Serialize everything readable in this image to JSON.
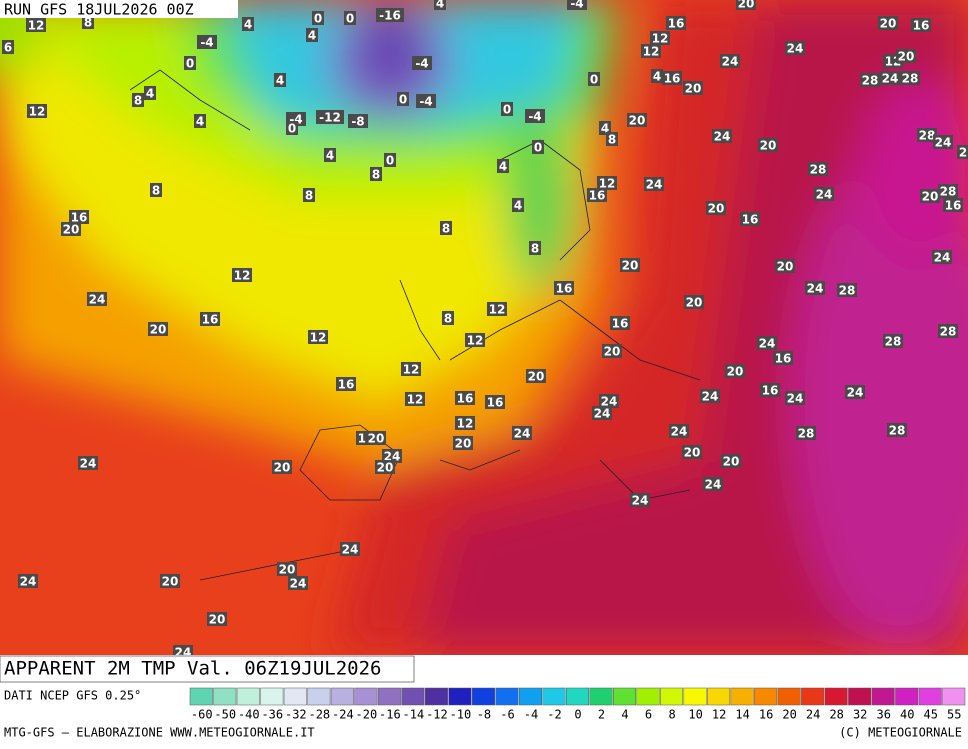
{
  "header": {
    "run": "RUN GFS 18JUL2026 00Z",
    "field": "APPARENT 2M TMP Val. 06Z19JUL2026"
  },
  "map_labels": [
    "12",
    "8",
    "0",
    "0",
    "-16",
    "4",
    "4",
    "6",
    "-4",
    "0",
    "4",
    "-4",
    "0",
    "-4",
    "8",
    "4",
    "12",
    "4",
    "-4",
    "-12",
    "-8",
    "0",
    "0",
    "-4",
    "0",
    "4",
    "8",
    "0",
    "4",
    "0",
    "8",
    "4",
    "8",
    "8",
    "4",
    "8",
    "8",
    "16",
    "20",
    "12",
    "24",
    "16",
    "20",
    "12",
    "8",
    "12",
    "12",
    "16",
    "16",
    "20",
    "20",
    "20",
    "16",
    "12",
    "12",
    "16",
    "16",
    "12",
    "20",
    "24",
    "24",
    "20",
    "12",
    "20",
    "24",
    "20",
    "24",
    "20",
    "24",
    "24",
    "20",
    "20",
    "24",
    "24",
    "24",
    "24",
    "20",
    "24",
    "20",
    "24",
    "20",
    "24",
    "20",
    "16",
    "16",
    "24",
    "24",
    "28",
    "24",
    "28",
    "28",
    "28",
    "24",
    "28",
    "20",
    "16",
    "20",
    "24",
    "28",
    "20",
    "24",
    "24",
    "12",
    "16",
    "20",
    "20",
    "16",
    "4",
    "24",
    "24",
    "12",
    "12",
    "16",
    "20",
    "16",
    "12",
    "20",
    "28",
    "24",
    "28",
    "28",
    "24",
    "2",
    "20",
    "28",
    "16",
    "24",
    "20",
    "-4",
    "4"
  ],
  "footer": {
    "source": "DATI NCEP GFS 0.25°",
    "credit": "MTG-GFS — ELABORAZIONE WWW.METEOGIORNALE.IT",
    "copyright": "(C) METEOGIORNALE"
  },
  "colorbar": {
    "ticks": [
      "-60",
      "-50",
      "-40",
      "-36",
      "-32",
      "-28",
      "-24",
      "-20",
      "-16",
      "-14",
      "-12",
      "-10",
      "-8",
      "-6",
      "-4",
      "-2",
      "0",
      "2",
      "4",
      "6",
      "8",
      "10",
      "12",
      "14",
      "16",
      "20",
      "24",
      "28",
      "32",
      "36",
      "40",
      "45",
      "55"
    ],
    "colors": [
      "#5fd4b0",
      "#8fe0c4",
      "#bff0dc",
      "#d8f4ec",
      "#e0e8f4",
      "#c8d0ec",
      "#b8b0e0",
      "#a890d4",
      "#9070c0",
      "#7050b0",
      "#5030a0",
      "#2020c0",
      "#1040e0",
      "#1070f0",
      "#10a0f0",
      "#20c8e8",
      "#20d8c0",
      "#20d070",
      "#60e030",
      "#a0f000",
      "#d0f800",
      "#f8f800",
      "#f8d800",
      "#f8b000",
      "#f88800",
      "#f06000",
      "#e83818",
      "#d81830",
      "#c01050",
      "#c01890",
      "#d020c0",
      "#e040e0",
      "#f090f0"
    ]
  }
}
